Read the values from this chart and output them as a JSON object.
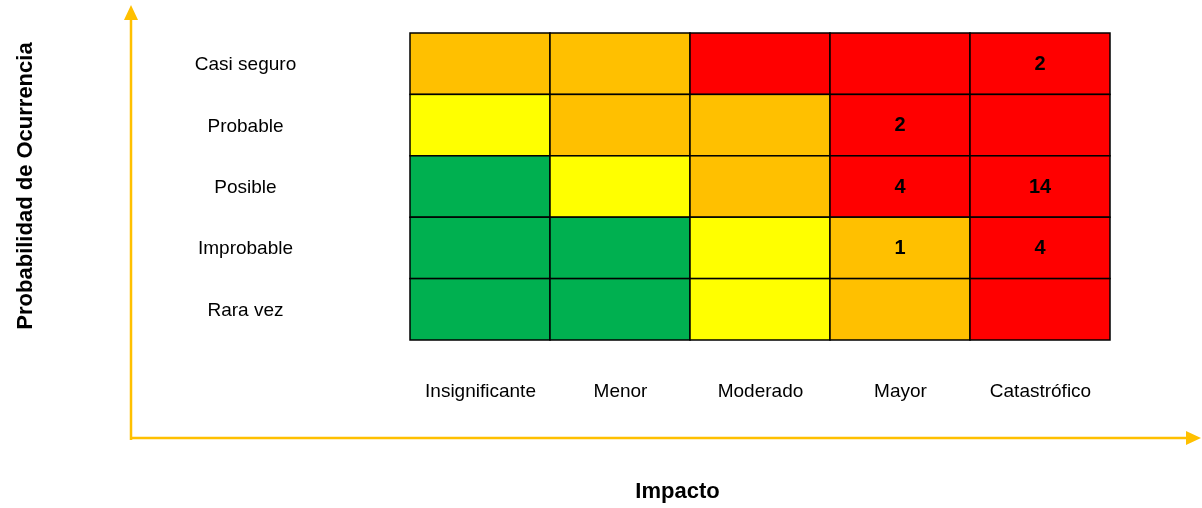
{
  "chart_data": {
    "type": "heatmap",
    "data_labels": true,
    "xlabel": "Impacto",
    "annotations": [
      "Probabilidad de Ocurrencia"
    ],
    "categories": [
      "Insignificante",
      "Menor",
      "Moderado",
      "Mayor",
      "Catastrófico"
    ],
    "y_categories": [
      "Casi seguro",
      "Probable",
      "Posible",
      "Improbable",
      "Rara vez"
    ],
    "cells": [
      [
        null,
        null,
        null,
        null,
        2
      ],
      [
        null,
        null,
        null,
        2,
        null
      ],
      [
        null,
        null,
        null,
        4,
        14
      ],
      [
        null,
        null,
        null,
        1,
        4
      ],
      [
        null,
        null,
        null,
        null,
        null
      ]
    ],
    "colors": [
      [
        "#ffc000",
        "#ffc000",
        "#ff0000",
        "#ff0000",
        "#ff0000"
      ],
      [
        "#ffff00",
        "#ffc000",
        "#ffc000",
        "#ff0000",
        "#ff0000"
      ],
      [
        "#00b050",
        "#ffff00",
        "#ffc000",
        "#ff0000",
        "#ff0000"
      ],
      [
        "#00b050",
        "#00b050",
        "#ffff00",
        "#ffc000",
        "#ff0000"
      ],
      [
        "#00b050",
        "#00b050",
        "#ffff00",
        "#ffc000",
        "#ff0000"
      ]
    ]
  }
}
